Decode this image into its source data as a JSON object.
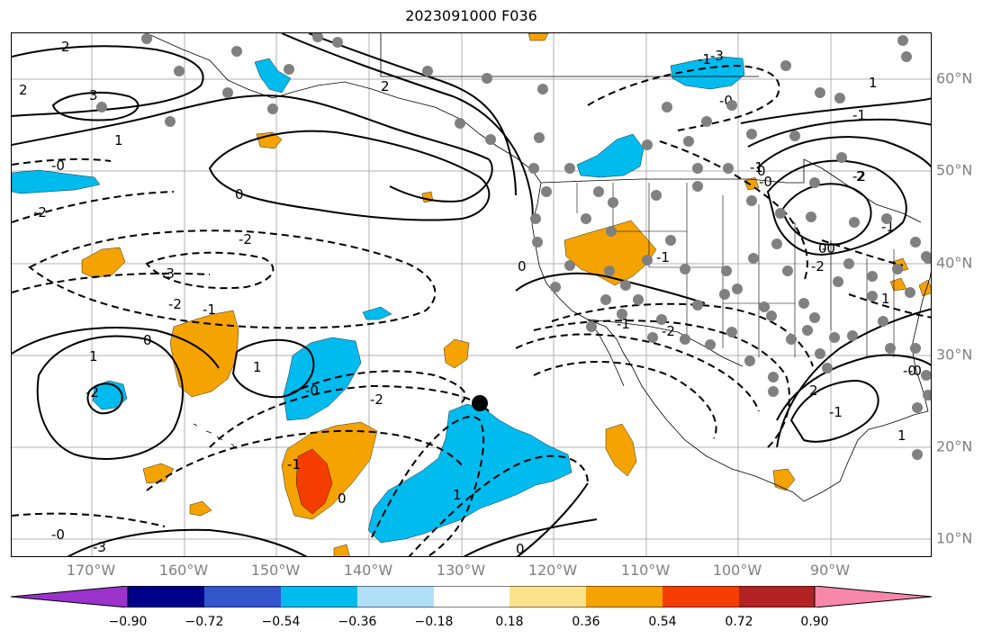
{
  "title": "2023091000 F036",
  "map": {
    "lon_labels": [
      "170°W",
      "160°W",
      "150°W",
      "140°W",
      "130°W",
      "120°W",
      "110°W",
      "100°W",
      "90°W"
    ],
    "lat_labels": [
      "60°N",
      "50°N",
      "40°N",
      "30°N",
      "20°N",
      "10°N"
    ],
    "contour_labels": [
      "2",
      "3",
      "2",
      "-0",
      "0",
      "-2",
      "-2",
      "-3",
      "-2",
      "-1",
      "0",
      "1",
      "1",
      "-2",
      "-0",
      "-2",
      "-1",
      "0",
      "1",
      "-3",
      "2",
      "-1",
      "1",
      "-0",
      "0",
      "-1",
      "-2",
      "-1",
      "-2",
      "-0",
      "-0",
      "-2",
      "0",
      "-1",
      "1",
      "0",
      "-1",
      "-1",
      "-0",
      "-3",
      "1",
      "2",
      "-1",
      "-0",
      "1",
      "-0",
      "2",
      "0"
    ]
  },
  "colorbar": {
    "labels": [
      "−0.90",
      "−0.72",
      "−0.54",
      "−0.36",
      "−0.18",
      "0.18",
      "0.36",
      "0.54",
      "0.72",
      "0.90"
    ],
    "colors": [
      "#9933cc",
      "#000088",
      "#3355cc",
      "#00bbee",
      "#b0e0f8",
      "#ffffff",
      "#fae38a",
      "#f5a300",
      "#f53d00",
      "#b22222",
      "#f888aa"
    ]
  },
  "colors": {
    "gridline": "#b0b0b0",
    "coast": "#000000",
    "station": "#808080",
    "marker": "#000000"
  }
}
